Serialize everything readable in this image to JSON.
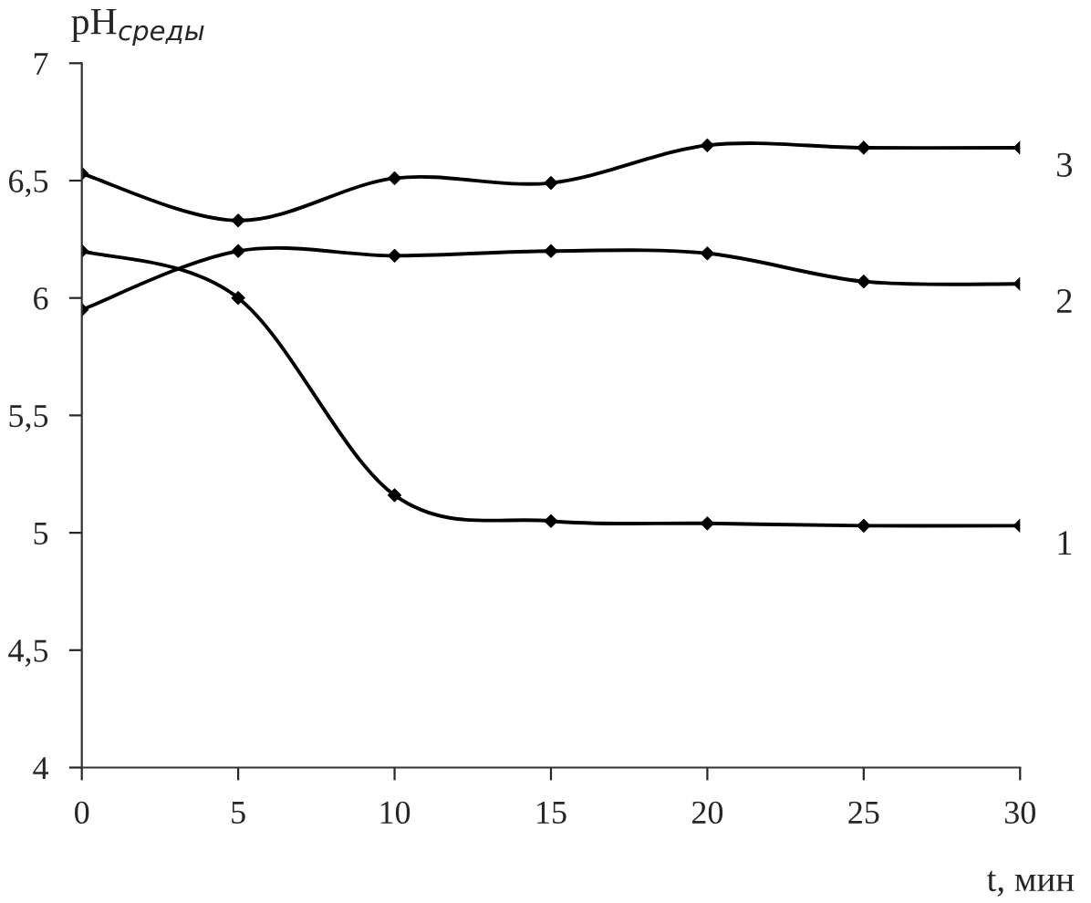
{
  "chart_data": {
    "type": "line",
    "xlabel": "t, мин",
    "ylabel": "pH$_{среды}$",
    "x": [
      0,
      5,
      10,
      15,
      20,
      25,
      30
    ],
    "series": [
      {
        "name": "1",
        "color": "#000000",
        "values": [
          6.2,
          6.0,
          5.16,
          5.05,
          5.04,
          5.03,
          5.03
        ]
      },
      {
        "name": "2",
        "color": "#000000",
        "values": [
          5.95,
          6.2,
          6.18,
          6.2,
          6.19,
          6.07,
          6.06
        ]
      },
      {
        "name": "3",
        "color": "#000000",
        "values": [
          6.53,
          6.33,
          6.51,
          6.49,
          6.65,
          6.64,
          6.64
        ]
      }
    ],
    "xlim": [
      0,
      30
    ],
    "xticks": [
      0,
      5,
      10,
      15,
      20,
      25,
      30
    ],
    "ylim": [
      4,
      7
    ],
    "yticks": [
      4,
      {
        "value": 4.5,
        "label": "4,5"
      },
      5,
      {
        "value": 5.5,
        "label": "5,5"
      },
      6,
      {
        "value": 6.5,
        "label": "6,5"
      },
      7
    ],
    "grid": false,
    "legend": false,
    "marker": "diamond",
    "line_style": "solid"
  }
}
